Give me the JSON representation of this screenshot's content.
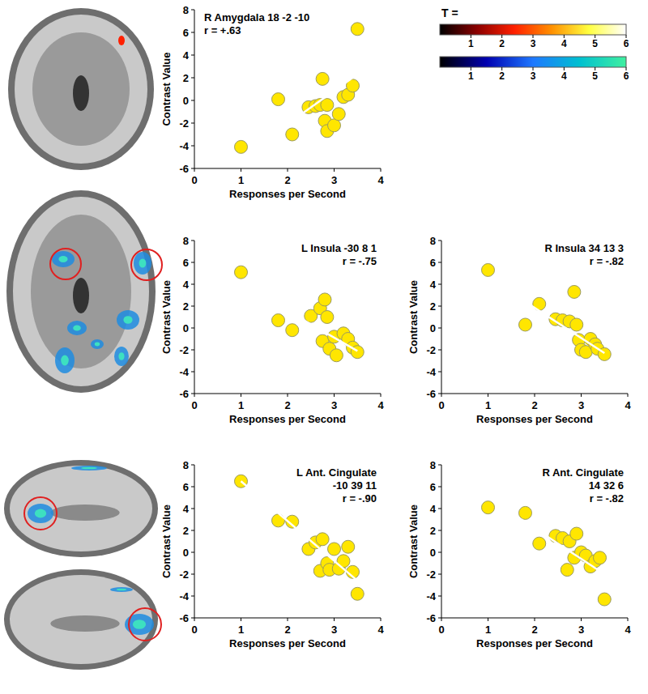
{
  "chart_data": [
    {
      "type": "scatter",
      "title": "R Amygdala 18 -2 -10",
      "annotation": "r = +.63",
      "xlabel": "Responses per Second",
      "ylabel": "Contrast Value",
      "x": [
        1.0,
        1.8,
        2.1,
        2.45,
        2.6,
        2.7,
        2.75,
        2.85,
        2.8,
        2.85,
        3.0,
        3.1,
        3.2,
        3.3,
        3.4,
        3.5
      ],
      "values": [
        -4.1,
        0.1,
        -3.0,
        -0.6,
        -0.5,
        -0.4,
        1.9,
        -0.4,
        -1.8,
        -2.7,
        -2.2,
        -1.2,
        0.3,
        0.5,
        1.3,
        6.3
      ],
      "color": "#ffe600",
      "marker": "circle",
      "fit": {
        "x": [
          1.0,
          3.5
        ],
        "values": [
          -5.0,
          2.3
        ]
      },
      "xlim": [
        0,
        4
      ],
      "ylim": [
        -6,
        8
      ],
      "xticks": [
        0,
        1,
        2,
        3,
        4
      ],
      "yticks": [
        -6,
        -4,
        -2,
        0,
        2,
        4,
        6,
        8
      ]
    },
    {
      "type": "scatter",
      "title": "L Insula -30 8 1",
      "annotation": "r = -.75",
      "xlabel": "Responses per Second",
      "ylabel": "Contrast Value",
      "x": [
        1.0,
        1.8,
        2.1,
        2.5,
        2.7,
        2.8,
        2.75,
        2.85,
        2.9,
        3.0,
        3.05,
        3.2,
        3.3,
        3.4,
        3.5
      ],
      "values": [
        5.1,
        0.7,
        -0.2,
        1.1,
        1.8,
        2.6,
        -1.2,
        1.0,
        -1.9,
        -0.8,
        -2.5,
        -0.5,
        -1.0,
        -1.8,
        -2.2
      ],
      "color": "#ffe600",
      "marker": "circle",
      "fit": {
        "x": [
          1.0,
          3.5
        ],
        "values": [
          4.0,
          -2.1
        ]
      },
      "xlim": [
        0,
        4
      ],
      "ylim": [
        -6,
        8
      ],
      "xticks": [
        0,
        1,
        2,
        3,
        4
      ],
      "yticks": [
        -6,
        -4,
        -2,
        0,
        2,
        4,
        6,
        8
      ]
    },
    {
      "type": "scatter",
      "title": "R Insula 34 13 3",
      "annotation": "r = -.82",
      "xlabel": "Responses per Second",
      "ylabel": "Contrast Value",
      "x": [
        1.0,
        1.8,
        2.1,
        2.45,
        2.6,
        2.75,
        2.85,
        2.9,
        2.95,
        3.0,
        3.1,
        3.2,
        3.3,
        3.35,
        3.5
      ],
      "values": [
        5.3,
        0.3,
        2.2,
        0.8,
        0.7,
        0.6,
        3.3,
        0.3,
        -1.1,
        -2.0,
        -2.2,
        -1.0,
        -1.5,
        -1.9,
        -2.4
      ],
      "color": "#ffe600",
      "marker": "circle",
      "fit": {
        "x": [
          1.0,
          3.5
        ],
        "values": [
          4.6,
          -2.3
        ]
      },
      "xlim": [
        0,
        4
      ],
      "ylim": [
        -6,
        8
      ],
      "xticks": [
        0,
        1,
        2,
        3,
        4
      ],
      "yticks": [
        -6,
        -4,
        -2,
        0,
        2,
        4,
        6,
        8
      ]
    },
    {
      "type": "scatter",
      "title": "L Ant. Cingulate",
      "subtitle": "-10 39 11",
      "annotation": "r = -.90",
      "xlabel": "Responses per Second",
      "ylabel": "Contrast Value",
      "x": [
        1.0,
        1.8,
        2.1,
        2.45,
        2.6,
        2.75,
        2.7,
        2.85,
        2.9,
        3.0,
        3.1,
        3.2,
        3.3,
        3.4,
        3.5
      ],
      "values": [
        6.5,
        2.9,
        2.8,
        0.3,
        0.9,
        1.2,
        -1.7,
        -1.0,
        -1.6,
        0.3,
        -1.5,
        -0.8,
        0.5,
        -1.8,
        -3.8
      ],
      "color": "#ffe600",
      "marker": "circle",
      "fit": {
        "x": [
          1.0,
          3.5
        ],
        "values": [
          6.5,
          -2.6
        ]
      },
      "xlim": [
        0,
        4
      ],
      "ylim": [
        -6,
        8
      ],
      "xticks": [
        0,
        1,
        2,
        3,
        4
      ],
      "yticks": [
        -6,
        -4,
        -2,
        0,
        2,
        4,
        6,
        8
      ]
    },
    {
      "type": "scatter",
      "title": "R Ant. Cingulate",
      "subtitle": "14 32 6",
      "annotation": "r = -.82",
      "xlabel": "Responses per Second",
      "ylabel": "Contrast Value",
      "x": [
        1.0,
        1.8,
        2.1,
        2.45,
        2.6,
        2.75,
        2.7,
        2.85,
        2.9,
        3.0,
        3.1,
        3.2,
        3.3,
        3.4,
        3.5
      ],
      "values": [
        4.1,
        3.6,
        0.8,
        1.5,
        1.3,
        1.0,
        -1.6,
        -0.5,
        1.7,
        0.0,
        -0.3,
        -1.3,
        -0.8,
        -0.5,
        -4.3
      ],
      "color": "#ffe600",
      "marker": "circle",
      "fit": {
        "x": [
          1.0,
          3.5
        ],
        "values": [
          5.0,
          -2.0
        ]
      },
      "xlim": [
        0,
        4
      ],
      "ylim": [
        -6,
        8
      ],
      "xticks": [
        0,
        1,
        2,
        3,
        4
      ],
      "yticks": [
        -6,
        -4,
        -2,
        0,
        2,
        4,
        6,
        8
      ]
    }
  ],
  "colorbars": {
    "label": "T =",
    "lim": [
      0,
      6
    ],
    "ticks": [
      1,
      2,
      3,
      4,
      5,
      6
    ],
    "colors": [
      [
        "#000000",
        "#8b0000",
        "#ff2000",
        "#ff9000",
        "#ffff40",
        "#ffffff"
      ],
      [
        "#000000",
        "#0000b0",
        "#1e78ff",
        "#00c0d0",
        "#40f0a0"
      ]
    ]
  }
}
